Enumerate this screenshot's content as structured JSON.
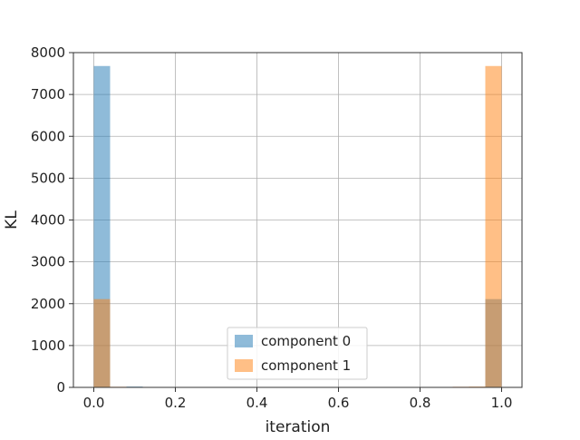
{
  "chart_data": {
    "type": "bar",
    "subtype": "overlaid-histogram",
    "title": "",
    "xlabel": "iteration",
    "ylabel": "KL",
    "xlim": [
      -0.05,
      1.05
    ],
    "ylim": [
      0,
      8000
    ],
    "xticks": [
      0.0,
      0.2,
      0.4,
      0.6,
      0.8,
      1.0
    ],
    "xtick_labels": [
      "0.0",
      "0.2",
      "0.4",
      "0.6",
      "0.8",
      "1.0"
    ],
    "yticks": [
      0,
      1000,
      2000,
      3000,
      4000,
      5000,
      6000,
      7000,
      8000
    ],
    "ytick_labels": [
      "0",
      "1000",
      "2000",
      "3000",
      "4000",
      "5000",
      "6000",
      "7000",
      "8000"
    ],
    "grid": true,
    "legend_position": "bottom-center",
    "bin_width": 0.04,
    "series": [
      {
        "name": "component 0",
        "color": "#1f77b4",
        "opacity": 0.5,
        "bins": [
          {
            "x0": 0.0,
            "x1": 0.04,
            "value": 7680
          },
          {
            "x0": 0.04,
            "x1": 0.08,
            "value": 10
          },
          {
            "x0": 0.08,
            "x1": 0.12,
            "value": 20
          },
          {
            "x0": 0.84,
            "x1": 0.88,
            "value": 5
          },
          {
            "x0": 0.92,
            "x1": 0.96,
            "value": 10
          },
          {
            "x0": 0.96,
            "x1": 1.0,
            "value": 2110
          }
        ]
      },
      {
        "name": "component 1",
        "color": "#ff7f0e",
        "opacity": 0.5,
        "bins": [
          {
            "x0": 0.0,
            "x1": 0.04,
            "value": 2110
          },
          {
            "x0": 0.04,
            "x1": 0.08,
            "value": 15
          },
          {
            "x0": 0.84,
            "x1": 0.88,
            "value": 10
          },
          {
            "x0": 0.88,
            "x1": 0.92,
            "value": 15
          },
          {
            "x0": 0.92,
            "x1": 0.96,
            "value": 20
          },
          {
            "x0": 0.96,
            "x1": 1.0,
            "value": 7680
          }
        ]
      }
    ]
  }
}
